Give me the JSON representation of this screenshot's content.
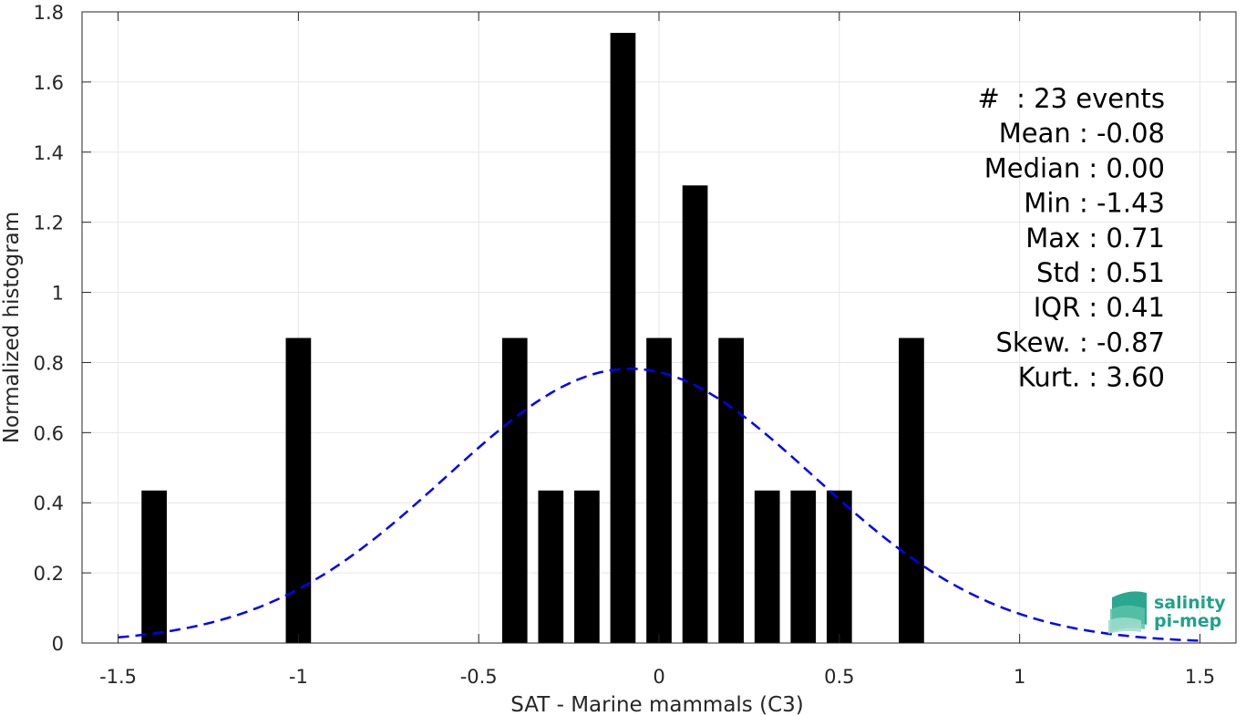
{
  "chart_data": {
    "type": "bar",
    "title": "",
    "xlabel": "SAT - Marine mammals (C3)",
    "ylabel": "Normalized histogram",
    "xlim": [
      -1.6,
      1.6
    ],
    "ylim": [
      0,
      1.8
    ],
    "xticks": [
      -1.5,
      -1,
      -0.5,
      0,
      0.5,
      1,
      1.5
    ],
    "xtick_labels": [
      "-1.5",
      "-1",
      "-0.5",
      "0",
      "0.5",
      "1",
      "1.5"
    ],
    "yticks": [
      0,
      0.2,
      0.4,
      0.6,
      0.8,
      1,
      1.2,
      1.4,
      1.6,
      1.8
    ],
    "ytick_labels": [
      "0",
      "0.2",
      "0.4",
      "0.6",
      "0.8",
      "1",
      "1.2",
      "1.4",
      "1.6",
      "1.8"
    ],
    "grid": true,
    "bar_width": 0.07,
    "bars": {
      "x": [
        -1.4,
        -1.0,
        -0.4,
        -0.3,
        -0.2,
        -0.1,
        0.0,
        0.1,
        0.2,
        0.3,
        0.4,
        0.5,
        0.7
      ],
      "values": [
        0.435,
        0.87,
        0.87,
        0.435,
        0.435,
        1.74,
        0.87,
        1.305,
        0.87,
        0.435,
        0.435,
        0.435,
        0.87
      ],
      "color": "#000000"
    },
    "fit_curve": {
      "style": "dashed",
      "color": "#0000ff",
      "mean": -0.08,
      "std": 0.51,
      "x_range": [
        -1.5,
        1.5
      ]
    },
    "annotations": [
      "#  : 23 events",
      "Mean : -0.08",
      "Median : 0.00",
      "Min : -1.43",
      "Max : 0.71",
      "Std : 0.51",
      "IQR : 0.41",
      "Skew. : -0.87",
      "Kurt. : 3.60"
    ]
  },
  "logo": {
    "line1": "salinity",
    "line2": "pi-mep",
    "color": "#1fa38a"
  }
}
